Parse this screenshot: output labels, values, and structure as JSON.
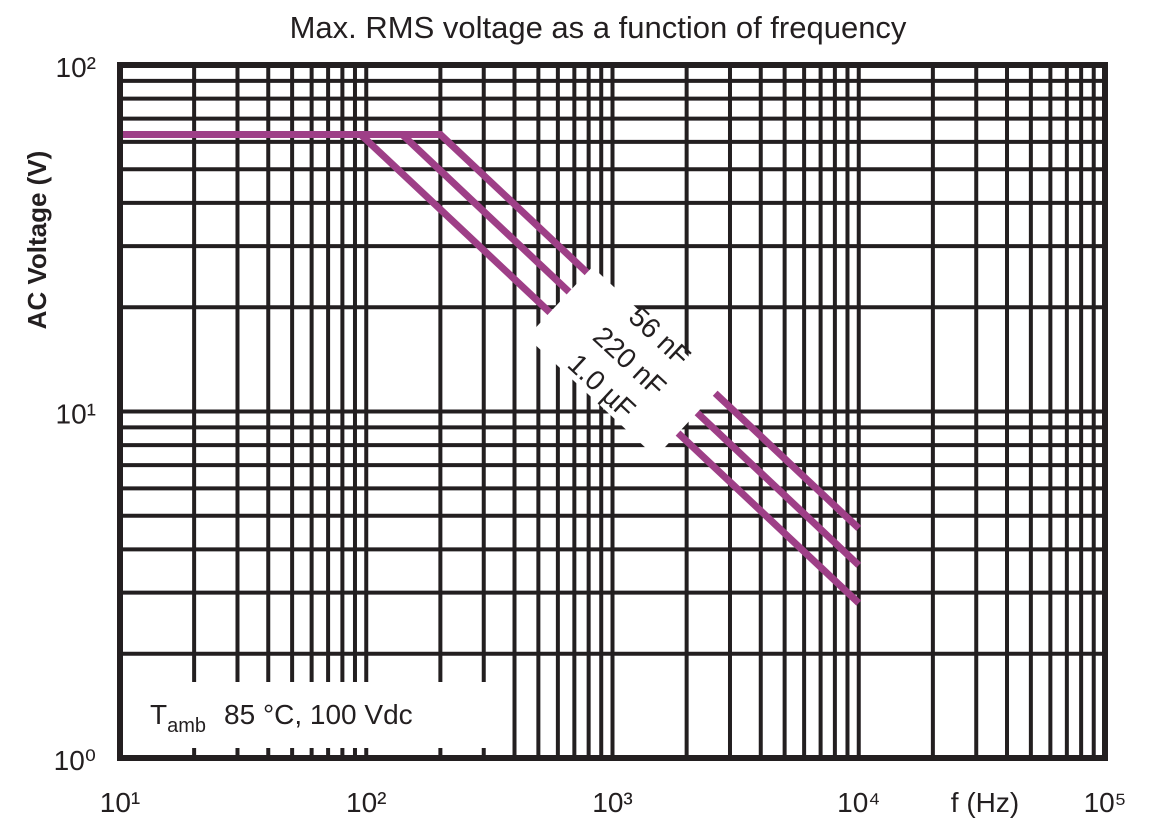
{
  "chart_data": {
    "type": "line",
    "title": "Max. RMS voltage as a function of frequency",
    "xlabel": "f (Hz)",
    "ylabel": "AC Voltage (V)",
    "xscale": "log",
    "yscale": "log",
    "xlim": [
      10,
      100000
    ],
    "ylim": [
      1,
      100
    ],
    "grid": true,
    "xticks": [
      10,
      100,
      1000,
      10000,
      100000
    ],
    "xtick_labels": [
      "10¹",
      "10²",
      "10³",
      "10⁴",
      "10⁵"
    ],
    "yticks": [
      1,
      10,
      100
    ],
    "ytick_labels": [
      "10⁰",
      "10¹",
      "10²"
    ],
    "series": [
      {
        "name": "56 nF",
        "x": [
          10,
          200,
          10000
        ],
        "y": [
          63,
          63,
          4.6
        ]
      },
      {
        "name": "220 nF",
        "x": [
          10,
          140,
          10000
        ],
        "y": [
          63,
          63,
          3.6
        ]
      },
      {
        "name": "1.0 µF",
        "x": [
          10,
          95,
          10000
        ],
        "y": [
          63,
          63,
          2.8
        ]
      }
    ],
    "series_color": "#9e3f87",
    "annotation": {
      "symbol": "T",
      "subscript": "amb",
      "text": "85 °C, 100 Vdc"
    }
  }
}
